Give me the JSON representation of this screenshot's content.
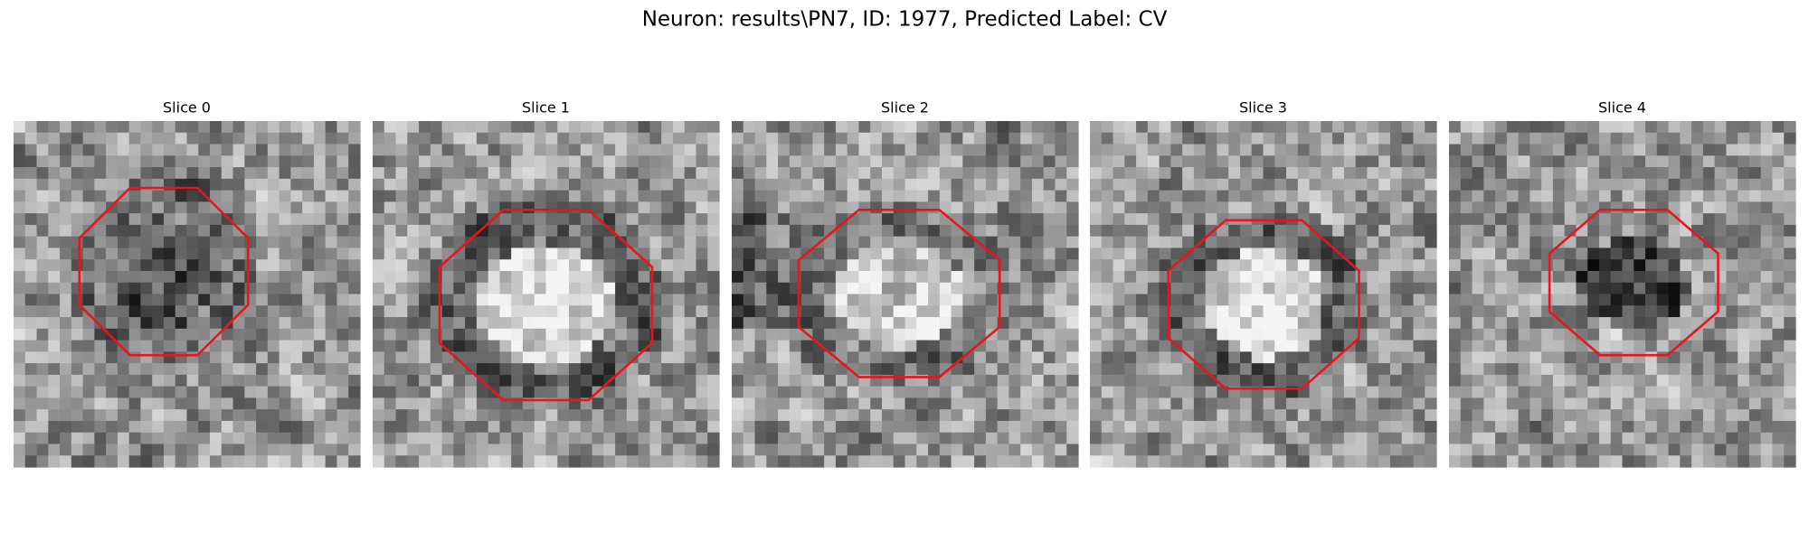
{
  "title": "Neuron: results\\PN7, ID: 1977, Predicted Label: CV",
  "panels": [
    {
      "title": "Slice 0"
    },
    {
      "title": "Slice 1"
    },
    {
      "title": "Slice 2"
    },
    {
      "title": "Slice 3"
    },
    {
      "title": "Slice 4"
    }
  ]
}
